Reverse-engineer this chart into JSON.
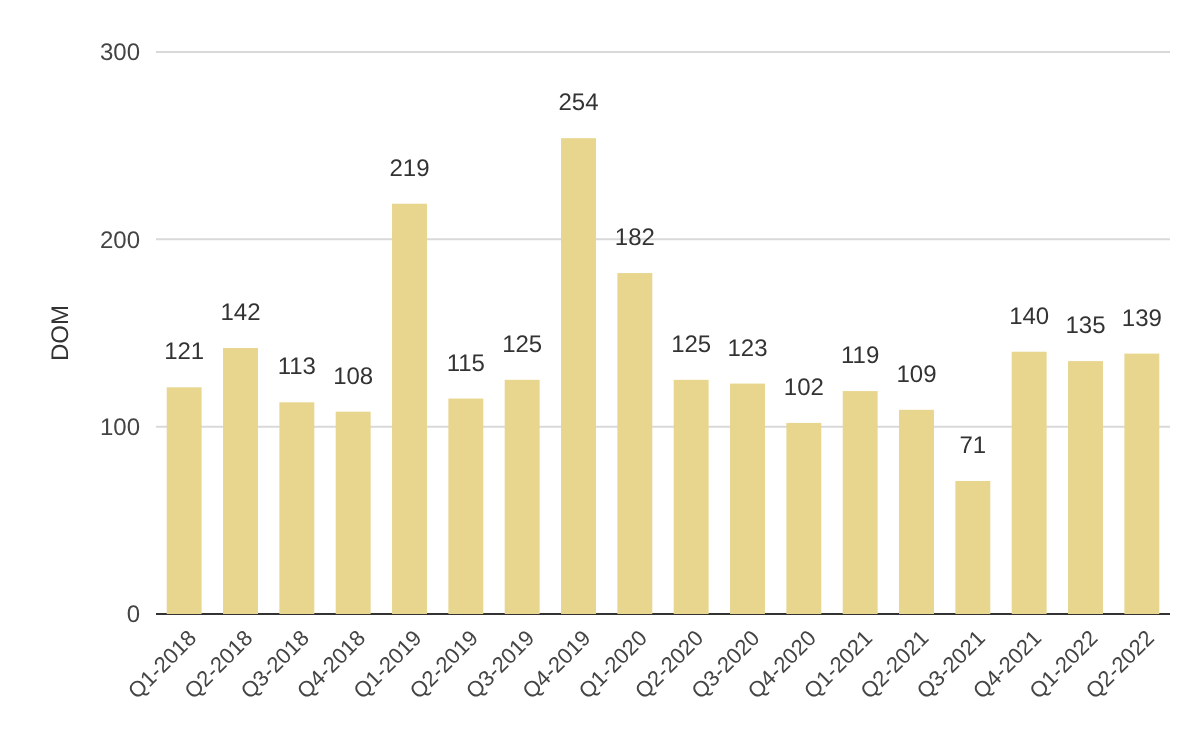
{
  "chart_data": {
    "type": "bar",
    "ylabel": "DOM",
    "categories": [
      "Q1-2018",
      "Q2-2018",
      "Q3-2018",
      "Q4-2018",
      "Q1-2019",
      "Q2-2019",
      "Q3-2019",
      "Q4-2019",
      "Q1-2020",
      "Q2-2020",
      "Q3-2020",
      "Q4-2020",
      "Q1-2021",
      "Q2-2021",
      "Q3-2021",
      "Q4-2021",
      "Q1-2022",
      "Q2-2022"
    ],
    "values": [
      121,
      142,
      113,
      108,
      219,
      115,
      125,
      254,
      182,
      125,
      123,
      102,
      119,
      109,
      71,
      140,
      135,
      139
    ],
    "color": "#e8d68f",
    "ylim": [
      0,
      300
    ],
    "yticks": [
      0,
      100,
      200,
      300
    ],
    "grid": "y",
    "data_labels": true
  }
}
